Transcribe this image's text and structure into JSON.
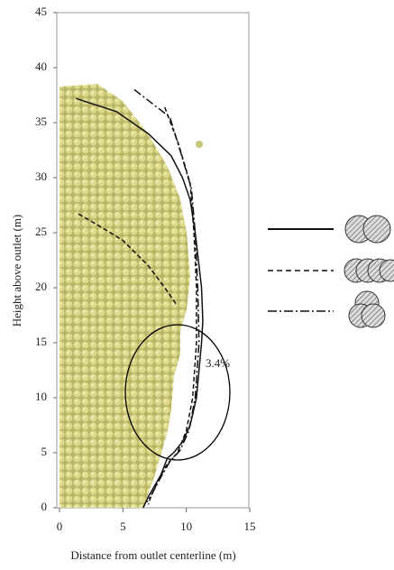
{
  "chart_data": {
    "type": "line",
    "x_label": "Distance from outlet centerline (m)",
    "y_label": "Height above outlet (m)",
    "annotation": "3.4%",
    "xlim": [
      0,
      15
    ],
    "xticks": [
      0,
      5,
      10,
      15
    ],
    "ylim": [
      0,
      45
    ],
    "yticks": [
      0,
      5,
      10,
      15,
      20,
      25,
      30,
      35,
      40,
      45
    ],
    "grid": false,
    "series": [
      {
        "color": "#111111",
        "dash": "solid",
        "x": [
          1.3,
          4.5,
          7,
          8.8,
          9.7,
          10.3,
          10.7,
          11,
          11.2,
          11.3,
          11.2,
          11,
          10.8,
          10.3,
          9.7,
          9,
          8.5,
          8,
          7.5,
          7,
          6.6
        ],
        "values": [
          37.2,
          36,
          34,
          32,
          30,
          28,
          25,
          22,
          20,
          17,
          15,
          12.5,
          10,
          7.5,
          6,
          5,
          4.5,
          3,
          2,
          1,
          0
        ]
      },
      {
        "color": "#111111",
        "dash": "dashed",
        "x": [
          1.5,
          3,
          5,
          7,
          8.3,
          9.2,
          null,
          8.3,
          9.4,
          10.3,
          10.6,
          10.8,
          10.8,
          10.5,
          10,
          9.3,
          8.5,
          7.8,
          7.2,
          7
        ],
        "values": [
          26.7,
          25.7,
          24.3,
          22,
          20,
          18.5,
          null,
          36.4,
          33,
          29.5,
          25,
          20,
          15,
          10,
          7,
          5,
          4,
          2.5,
          1,
          0.3
        ]
      },
      {
        "color": "#111111",
        "dash": "dashdot",
        "x": [
          5.9,
          8.7,
          9.5,
          10.4,
          10.7,
          10.9,
          11,
          10.7,
          10.2,
          9.5,
          8.7,
          8,
          7.4,
          6.9
        ],
        "values": [
          38,
          35.5,
          32.5,
          29,
          25,
          20,
          15,
          10,
          7,
          5.2,
          4.2,
          2.8,
          1.5,
          0.5
        ]
      }
    ]
  }
}
